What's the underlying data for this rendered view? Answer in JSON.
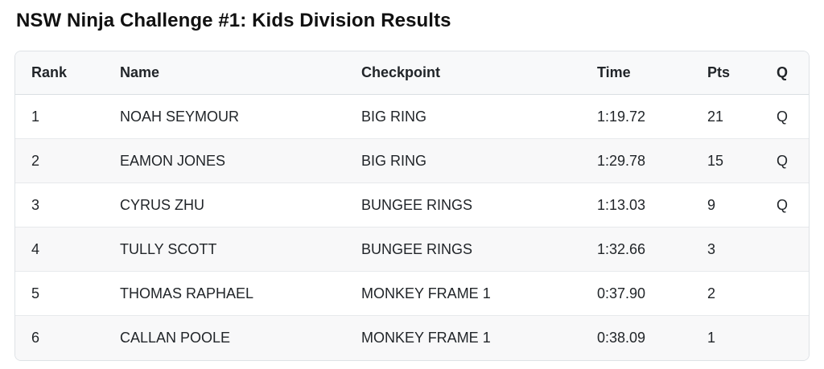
{
  "page": {
    "title": "NSW Ninja Challenge #1: Kids Division Results"
  },
  "table": {
    "columns": [
      "Rank",
      "Name",
      "Checkpoint",
      "Time",
      "Pts",
      "Q"
    ],
    "rows": [
      {
        "rank": "1",
        "name": "NOAH SEYMOUR",
        "checkpoint": "BIG RING",
        "time": "1:19.72",
        "pts": "21",
        "q": "Q"
      },
      {
        "rank": "2",
        "name": "EAMON JONES",
        "checkpoint": "BIG RING",
        "time": "1:29.78",
        "pts": "15",
        "q": "Q"
      },
      {
        "rank": "3",
        "name": "CYRUS ZHU",
        "checkpoint": "BUNGEE RINGS",
        "time": "1:13.03",
        "pts": "9",
        "q": "Q"
      },
      {
        "rank": "4",
        "name": "TULLY SCOTT",
        "checkpoint": "BUNGEE RINGS",
        "time": "1:32.66",
        "pts": "3",
        "q": ""
      },
      {
        "rank": "5",
        "name": "THOMAS RAPHAEL",
        "checkpoint": "MONKEY FRAME 1",
        "time": "0:37.90",
        "pts": "2",
        "q": ""
      },
      {
        "rank": "6",
        "name": "CALLAN POOLE",
        "checkpoint": "MONKEY FRAME 1",
        "time": "0:38.09",
        "pts": "1",
        "q": ""
      }
    ],
    "colors": {
      "header_bg": "#f8f9fa",
      "stripe_bg": "#f8f8f9",
      "border": "#dee2e6",
      "text": "#212529"
    }
  }
}
